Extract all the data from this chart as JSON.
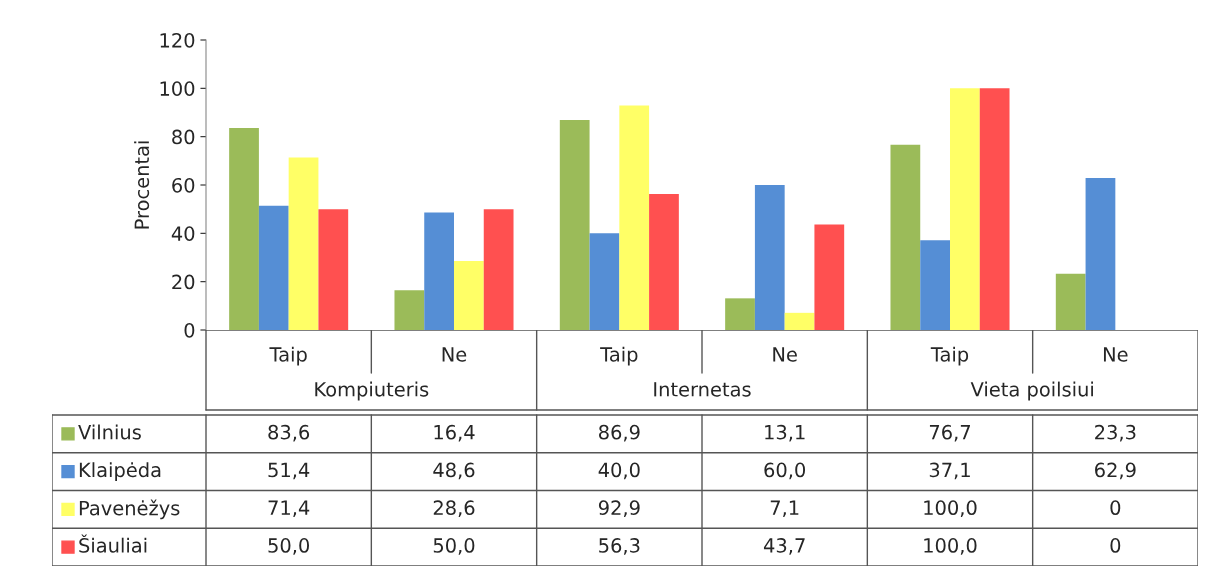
{
  "chart_data": {
    "type": "bar",
    "ylabel": "Procentai",
    "categories": [
      "Taip",
      "Ne",
      "Taip",
      "Ne",
      "Taip",
      "Ne"
    ],
    "annotations": [
      "Kompiuteris",
      "Internetas",
      "Vieta poilsiui"
    ],
    "series": [
      {
        "name": "Vilnius",
        "color": "#9bbb59",
        "values": [
          83.6,
          16.4,
          86.9,
          13.1,
          76.7,
          23.3
        ],
        "value_labels": [
          "83,6",
          "16,4",
          "86,9",
          "13,1",
          "76,7",
          "23,3"
        ]
      },
      {
        "name": "Klaipėda",
        "color": "#558ed5",
        "values": [
          51.4,
          48.6,
          40.0,
          60.0,
          37.1,
          62.9
        ],
        "value_labels": [
          "51,4",
          "48,6",
          "40,0",
          "60,0",
          "37,1",
          "62,9"
        ]
      },
      {
        "name": "Pavenėžys",
        "color": "#ffff66",
        "values": [
          71.4,
          28.6,
          92.9,
          7.1,
          100.0,
          0
        ],
        "value_labels": [
          "71,4",
          "28,6",
          "92,9",
          "7,1",
          "100,0",
          "0"
        ]
      },
      {
        "name": "Šiauliai",
        "color": "#ff5050",
        "values": [
          50.0,
          50.0,
          56.3,
          43.7,
          100.0,
          0
        ],
        "value_labels": [
          "50,0",
          "50,0",
          "56,3",
          "43,7",
          "100,0",
          "0"
        ]
      }
    ],
    "ylim": [
      0,
      120
    ],
    "yticks": [
      0,
      20,
      40,
      60,
      80,
      100,
      120
    ],
    "grid": false,
    "legend": "bottom left"
  }
}
